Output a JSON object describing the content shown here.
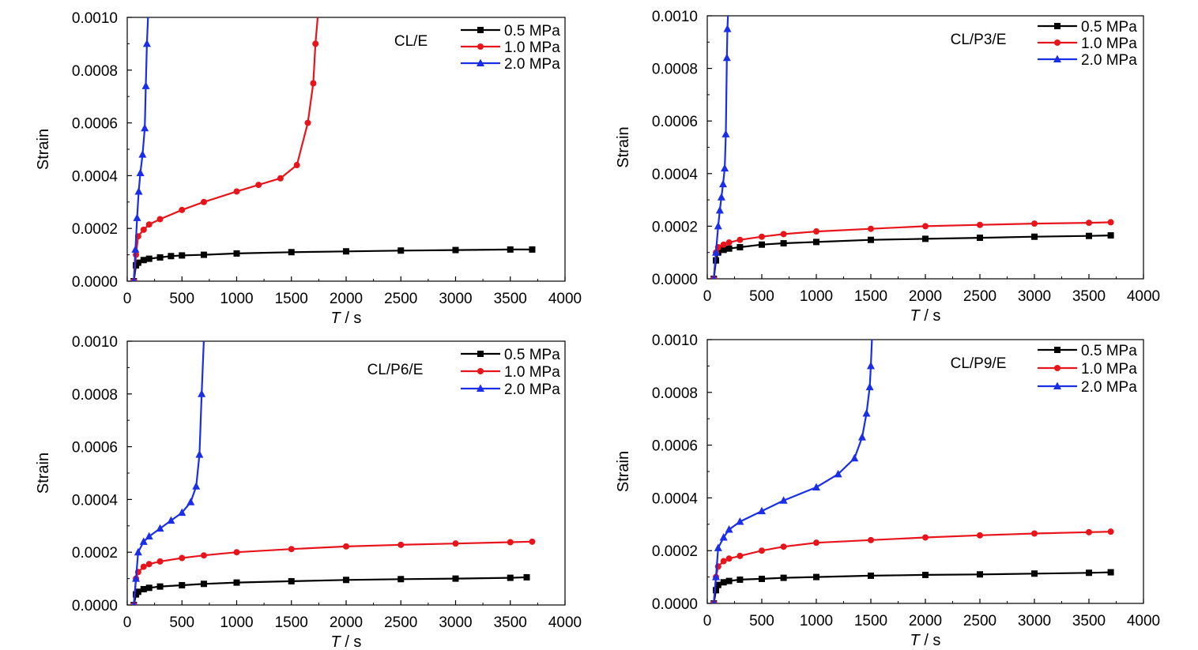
{
  "chart_data": [
    {
      "type": "line",
      "title": "CL/E",
      "xlabel_italic": "T",
      "xlabel_unit": " / s",
      "ylabel": "Strain",
      "xlim": [
        0,
        4000
      ],
      "ylim": [
        0,
        0.001
      ],
      "xticks": [
        "0",
        "500",
        "1000",
        "1500",
        "2000",
        "2500",
        "3000",
        "3500",
        "4000"
      ],
      "yticks": [
        "0.0000",
        "0.0002",
        "0.0004",
        "0.0006",
        "0.0008",
        "0.0010"
      ],
      "legend_position": "top-right",
      "series": [
        {
          "name": "0.5 MPa",
          "color": "#000000",
          "marker": "square",
          "x": [
            60,
            80,
            100,
            150,
            200,
            300,
            400,
            500,
            700,
            1000,
            1500,
            2000,
            2500,
            3000,
            3500,
            3700
          ],
          "y": [
            0,
            6e-05,
            7e-05,
            8e-05,
            8.5e-05,
            9e-05,
            9.5e-05,
            9.75e-05,
            0.0001,
            0.000105,
            0.00011,
            0.000113,
            0.000116,
            0.000118,
            0.00012,
            0.00012
          ]
        },
        {
          "name": "1.0 MPa",
          "color": "#e8141c",
          "marker": "circle",
          "x": [
            60,
            80,
            100,
            150,
            200,
            300,
            500,
            700,
            1000,
            1200,
            1400,
            1550,
            1650,
            1700,
            1720,
            1740
          ],
          "y": [
            0,
            0.0001,
            0.00017,
            0.000195,
            0.000215,
            0.000235,
            0.00027,
            0.0003,
            0.00034,
            0.000365,
            0.00039,
            0.00044,
            0.0006,
            0.00075,
            0.0009,
            0.001
          ]
        },
        {
          "name": "2.0 MPa",
          "color": "#1a2ee8",
          "marker": "triangle",
          "x": [
            60,
            75,
            90,
            105,
            120,
            140,
            160,
            170,
            180,
            190
          ],
          "y": [
            0,
            0.00012,
            0.00024,
            0.00034,
            0.00041,
            0.00048,
            0.00058,
            0.00074,
            0.0009,
            0.001
          ]
        }
      ]
    },
    {
      "type": "line",
      "title": "CL/P3/E",
      "xlabel_italic": "T",
      "xlabel_unit": " / s",
      "ylabel": "Strain",
      "xlim": [
        0,
        4000
      ],
      "ylim": [
        0,
        0.001
      ],
      "xticks": [
        "0",
        "500",
        "1000",
        "1500",
        "2000",
        "2500",
        "3000",
        "3500",
        "4000"
      ],
      "yticks": [
        "0.0000",
        "0.0002",
        "0.0004",
        "0.0006",
        "0.0008",
        "0.0010"
      ],
      "legend_position": "top-right",
      "series": [
        {
          "name": "0.5 MPa",
          "color": "#000000",
          "marker": "square",
          "x": [
            60,
            80,
            100,
            150,
            200,
            300,
            500,
            700,
            1000,
            1500,
            2000,
            2500,
            3000,
            3500,
            3700
          ],
          "y": [
            0,
            7e-05,
            0.0001,
            0.00011,
            0.000115,
            0.00012,
            0.00013,
            0.000135,
            0.00014,
            0.000148,
            0.000152,
            0.000156,
            0.00016,
            0.000163,
            0.000165
          ]
        },
        {
          "name": "1.0 MPa",
          "color": "#e8141c",
          "marker": "circle",
          "x": [
            60,
            80,
            100,
            150,
            200,
            300,
            500,
            700,
            1000,
            1500,
            2000,
            2500,
            3000,
            3500,
            3700
          ],
          "y": [
            0,
            0.0001,
            0.00012,
            0.00013,
            0.000138,
            0.000148,
            0.00016,
            0.00017,
            0.00018,
            0.00019,
            0.0002,
            0.000205,
            0.00021,
            0.000213,
            0.000215
          ]
        },
        {
          "name": "2.0 MPa",
          "color": "#1a2ee8",
          "marker": "triangle",
          "x": [
            60,
            80,
            100,
            115,
            130,
            145,
            160,
            170,
            180,
            185,
            190
          ],
          "y": [
            0,
            0.0001,
            0.0002,
            0.00026,
            0.00031,
            0.00036,
            0.00042,
            0.00055,
            0.00084,
            0.00095,
            0.001
          ]
        }
      ]
    },
    {
      "type": "line",
      "title": "CL/P6/E",
      "xlabel_italic": "T",
      "xlabel_unit": " / s",
      "ylabel": "Strain",
      "xlim": [
        0,
        4000
      ],
      "ylim": [
        0,
        0.001
      ],
      "xticks": [
        "0",
        "500",
        "1000",
        "1500",
        "2000",
        "2500",
        "3000",
        "3500",
        "4000"
      ],
      "yticks": [
        "0.0000",
        "0.0002",
        "0.0004",
        "0.0006",
        "0.0008",
        "0.0010"
      ],
      "legend_position": "top-right",
      "series": [
        {
          "name": "0.5 MPa",
          "color": "#000000",
          "marker": "square",
          "x": [
            60,
            80,
            100,
            150,
            200,
            300,
            500,
            700,
            1000,
            1500,
            2000,
            2500,
            3000,
            3500,
            3650
          ],
          "y": [
            0,
            4e-05,
            5e-05,
            6e-05,
            6.5e-05,
            7e-05,
            7.5e-05,
            8e-05,
            8.5e-05,
            9e-05,
            9.5e-05,
            9.8e-05,
            0.0001,
            0.000103,
            0.000105
          ]
        },
        {
          "name": "1.0 MPa",
          "color": "#e8141c",
          "marker": "circle",
          "x": [
            60,
            80,
            100,
            150,
            200,
            300,
            500,
            700,
            1000,
            1500,
            2000,
            2500,
            3000,
            3500,
            3700
          ],
          "y": [
            0,
            0.0001,
            0.000125,
            0.000145,
            0.000155,
            0.000165,
            0.000178,
            0.000188,
            0.0002,
            0.000212,
            0.000222,
            0.000228,
            0.000233,
            0.000238,
            0.00024
          ]
        },
        {
          "name": "2.0 MPa",
          "color": "#1a2ee8",
          "marker": "triangle",
          "x": [
            60,
            80,
            100,
            150,
            200,
            300,
            400,
            500,
            580,
            630,
            660,
            680,
            700
          ],
          "y": [
            0,
            0.0001,
            0.0002,
            0.00024,
            0.00026,
            0.00029,
            0.00032,
            0.00035,
            0.00039,
            0.00045,
            0.00057,
            0.0008,
            0.001
          ]
        }
      ]
    },
    {
      "type": "line",
      "title": "CL/P9/E",
      "xlabel_italic": "T",
      "xlabel_unit": " / s",
      "ylabel": "Strain",
      "xlim": [
        0,
        4000
      ],
      "ylim": [
        0,
        0.001
      ],
      "xticks": [
        "0",
        "500",
        "1000",
        "1500",
        "2000",
        "2500",
        "3000",
        "3500",
        "4000"
      ],
      "yticks": [
        "0.0000",
        "0.0002",
        "0.0004",
        "0.0006",
        "0.0008",
        "0.0010"
      ],
      "legend_position": "top-right",
      "series": [
        {
          "name": "0.5 MPa",
          "color": "#000000",
          "marker": "square",
          "x": [
            60,
            80,
            100,
            150,
            200,
            300,
            500,
            700,
            1000,
            1500,
            2000,
            2500,
            3000,
            3500,
            3700
          ],
          "y": [
            0,
            5e-05,
            7e-05,
            8e-05,
            8.5e-05,
            9e-05,
            9.3e-05,
            9.7e-05,
            0.0001,
            0.000105,
            0.000108,
            0.00011,
            0.000113,
            0.000116,
            0.000118
          ]
        },
        {
          "name": "1.0 MPa",
          "color": "#e8141c",
          "marker": "circle",
          "x": [
            60,
            80,
            100,
            150,
            200,
            300,
            500,
            700,
            1000,
            1500,
            2000,
            2500,
            3000,
            3500,
            3700
          ],
          "y": [
            0,
            0.0001,
            0.00014,
            0.00016,
            0.00017,
            0.00018,
            0.0002,
            0.000215,
            0.00023,
            0.00024,
            0.00025,
            0.000258,
            0.000265,
            0.00027,
            0.000272
          ]
        },
        {
          "name": "2.0 MPa",
          "color": "#1a2ee8",
          "marker": "triangle",
          "x": [
            60,
            80,
            100,
            150,
            200,
            300,
            500,
            700,
            1000,
            1200,
            1350,
            1420,
            1460,
            1490,
            1500,
            1510
          ],
          "y": [
            0,
            0.0001,
            0.00021,
            0.00025,
            0.00028,
            0.00031,
            0.00035,
            0.00039,
            0.00044,
            0.00049,
            0.00055,
            0.00063,
            0.00072,
            0.00082,
            0.0009,
            0.001
          ]
        }
      ]
    }
  ]
}
